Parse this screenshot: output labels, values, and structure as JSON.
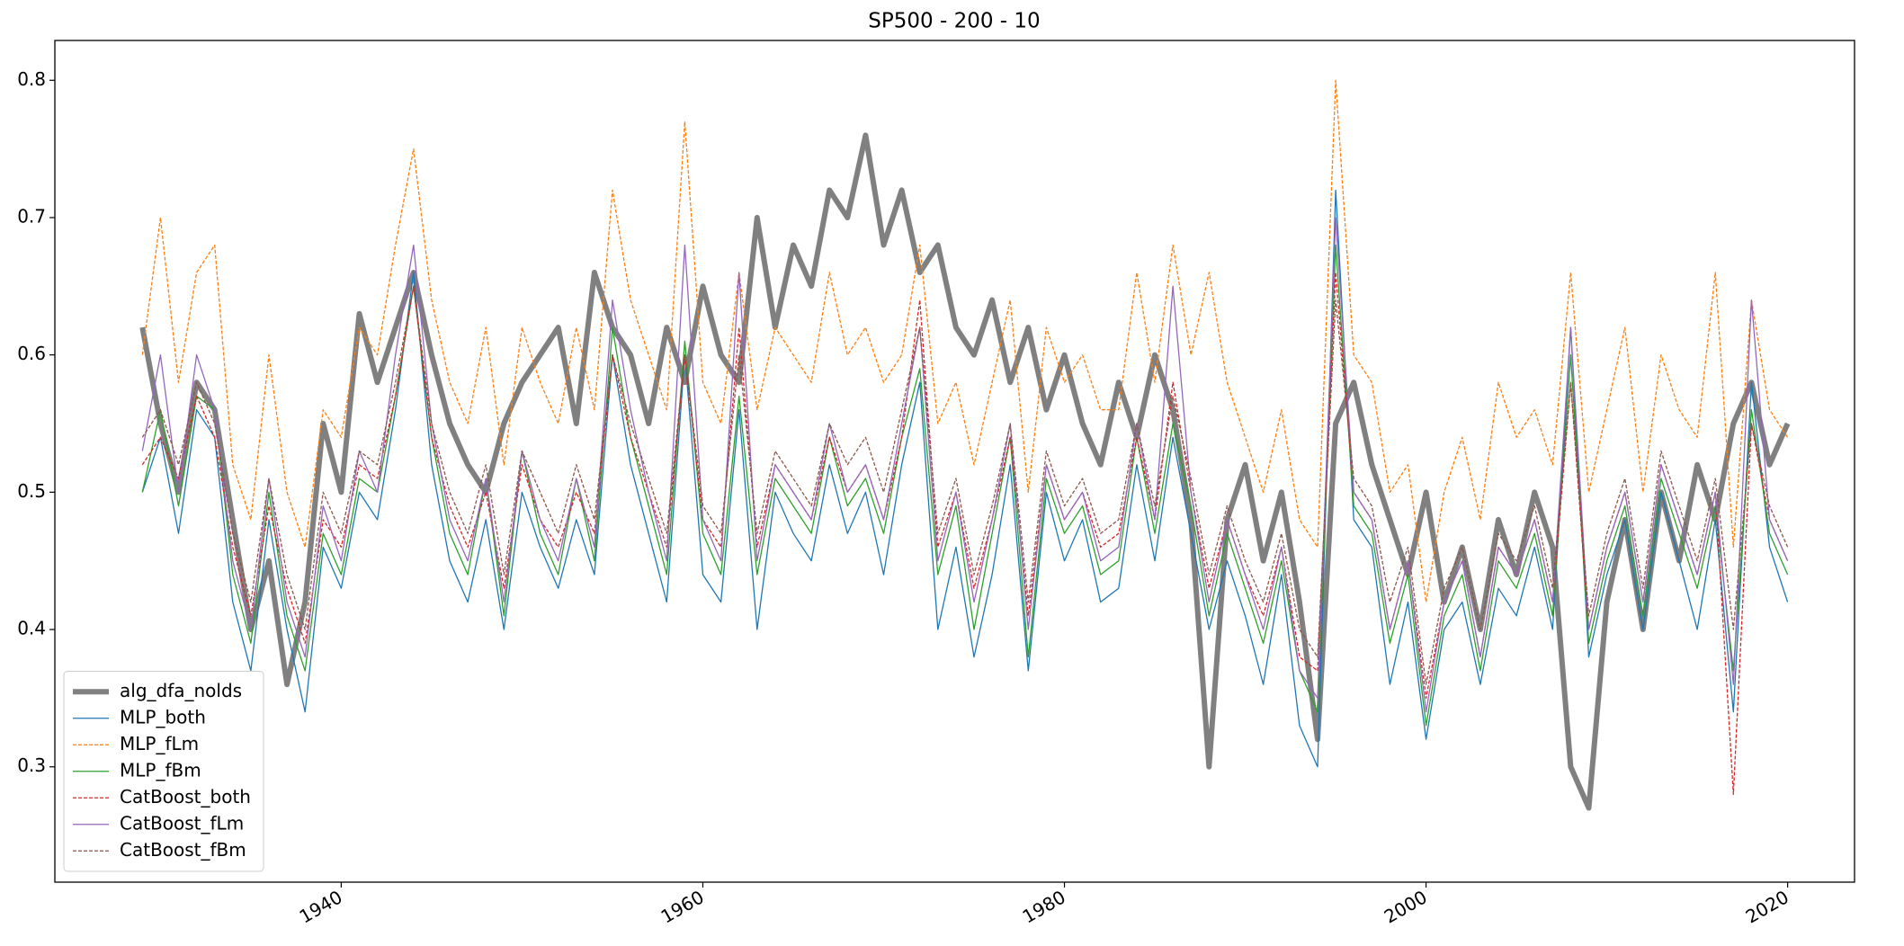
{
  "chart_data": {
    "type": "line",
    "title": "SP500 - 200 - 10",
    "x": [
      1929,
      1930,
      1931,
      1932,
      1933,
      1934,
      1935,
      1936,
      1937,
      1938,
      1939,
      1940,
      1941,
      1942,
      1943,
      1944,
      1945,
      1946,
      1947,
      1948,
      1949,
      1950,
      1951,
      1952,
      1953,
      1954,
      1955,
      1956,
      1957,
      1958,
      1959,
      1960,
      1961,
      1962,
      1963,
      1964,
      1965,
      1966,
      1967,
      1968,
      1969,
      1970,
      1971,
      1972,
      1973,
      1974,
      1975,
      1976,
      1977,
      1978,
      1979,
      1980,
      1981,
      1982,
      1983,
      1984,
      1985,
      1986,
      1987,
      1988,
      1989,
      1990,
      1991,
      1992,
      1993,
      1994,
      1995,
      1996,
      1997,
      1998,
      1999,
      2000,
      2001,
      2002,
      2003,
      2004,
      2005,
      2006,
      2007,
      2008,
      2009,
      2010,
      2011,
      2012,
      2013,
      2014,
      2015,
      2016,
      2017,
      2018,
      2019,
      2020
    ],
    "xlim": [
      1924.16,
      2023.7
    ],
    "xticks": [
      1940,
      1960,
      1980,
      2000,
      2020
    ],
    "ylim": [
      0.216,
      0.829
    ],
    "yticks": [
      0.3,
      0.4,
      0.5,
      0.6,
      0.7,
      0.8
    ],
    "legend": "lower left",
    "series": [
      {
        "name": "alg_dfa_nolds",
        "color": "#808080",
        "linewidth": 6,
        "linestyle": "solid",
        "values": [
          0.62,
          0.55,
          0.5,
          0.58,
          0.56,
          0.48,
          0.4,
          0.45,
          0.36,
          0.42,
          0.55,
          0.5,
          0.63,
          0.58,
          0.62,
          0.66,
          0.6,
          0.55,
          0.52,
          0.5,
          0.55,
          0.58,
          0.6,
          0.62,
          0.55,
          0.66,
          0.62,
          0.6,
          0.55,
          0.62,
          0.58,
          0.65,
          0.6,
          0.58,
          0.7,
          0.62,
          0.68,
          0.65,
          0.72,
          0.7,
          0.76,
          0.68,
          0.72,
          0.66,
          0.68,
          0.62,
          0.6,
          0.64,
          0.58,
          0.62,
          0.56,
          0.6,
          0.55,
          0.52,
          0.58,
          0.54,
          0.6,
          0.56,
          0.48,
          0.3,
          0.48,
          0.52,
          0.45,
          0.5,
          0.42,
          0.32,
          0.55,
          0.58,
          0.52,
          0.48,
          0.44,
          0.5,
          0.42,
          0.46,
          0.4,
          0.48,
          0.44,
          0.5,
          0.46,
          0.3,
          0.27,
          0.42,
          0.48,
          0.4,
          0.5,
          0.45,
          0.52,
          0.48,
          0.55,
          0.58,
          0.52,
          0.55
        ]
      },
      {
        "name": "MLP_both",
        "color": "#1f77b4",
        "linewidth": 1.3,
        "linestyle": "solid",
        "values": [
          0.5,
          0.54,
          0.47,
          0.56,
          0.54,
          0.42,
          0.37,
          0.48,
          0.4,
          0.34,
          0.46,
          0.43,
          0.5,
          0.48,
          0.56,
          0.66,
          0.52,
          0.45,
          0.42,
          0.48,
          0.4,
          0.5,
          0.46,
          0.43,
          0.48,
          0.44,
          0.6,
          0.52,
          0.47,
          0.42,
          0.6,
          0.44,
          0.42,
          0.56,
          0.4,
          0.5,
          0.47,
          0.45,
          0.52,
          0.47,
          0.5,
          0.44,
          0.52,
          0.58,
          0.4,
          0.46,
          0.38,
          0.44,
          0.52,
          0.37,
          0.5,
          0.45,
          0.48,
          0.42,
          0.43,
          0.52,
          0.45,
          0.54,
          0.47,
          0.4,
          0.45,
          0.41,
          0.36,
          0.44,
          0.33,
          0.3,
          0.72,
          0.48,
          0.46,
          0.36,
          0.42,
          0.32,
          0.4,
          0.42,
          0.36,
          0.43,
          0.41,
          0.46,
          0.4,
          0.62,
          0.38,
          0.44,
          0.48,
          0.4,
          0.5,
          0.45,
          0.4,
          0.48,
          0.34,
          0.58,
          0.46,
          0.42
        ]
      },
      {
        "name": "MLP_fLm",
        "color": "#ff7f0e",
        "linewidth": 1.3,
        "linestyle": "dashed",
        "values": [
          0.6,
          0.7,
          0.58,
          0.66,
          0.68,
          0.52,
          0.48,
          0.6,
          0.5,
          0.46,
          0.56,
          0.54,
          0.62,
          0.6,
          0.68,
          0.75,
          0.64,
          0.58,
          0.55,
          0.62,
          0.52,
          0.62,
          0.58,
          0.55,
          0.62,
          0.56,
          0.72,
          0.64,
          0.6,
          0.56,
          0.77,
          0.58,
          0.55,
          0.66,
          0.56,
          0.62,
          0.6,
          0.58,
          0.66,
          0.6,
          0.62,
          0.58,
          0.6,
          0.68,
          0.55,
          0.58,
          0.52,
          0.58,
          0.64,
          0.5,
          0.62,
          0.58,
          0.6,
          0.56,
          0.56,
          0.66,
          0.58,
          0.68,
          0.6,
          0.66,
          0.58,
          0.54,
          0.5,
          0.56,
          0.48,
          0.46,
          0.8,
          0.6,
          0.58,
          0.5,
          0.52,
          0.42,
          0.5,
          0.54,
          0.48,
          0.58,
          0.54,
          0.56,
          0.52,
          0.66,
          0.5,
          0.56,
          0.62,
          0.5,
          0.6,
          0.56,
          0.54,
          0.66,
          0.46,
          0.64,
          0.56,
          0.54
        ]
      },
      {
        "name": "MLP_fBm",
        "color": "#2ca02c",
        "linewidth": 1.3,
        "linestyle": "solid",
        "values": [
          0.5,
          0.56,
          0.49,
          0.57,
          0.56,
          0.44,
          0.39,
          0.5,
          0.41,
          0.37,
          0.47,
          0.44,
          0.51,
          0.5,
          0.57,
          0.65,
          0.54,
          0.47,
          0.44,
          0.51,
          0.41,
          0.53,
          0.47,
          0.44,
          0.51,
          0.45,
          0.62,
          0.54,
          0.49,
          0.44,
          0.61,
          0.47,
          0.44,
          0.57,
          0.44,
          0.51,
          0.49,
          0.47,
          0.54,
          0.49,
          0.51,
          0.47,
          0.54,
          0.59,
          0.44,
          0.49,
          0.4,
          0.47,
          0.54,
          0.38,
          0.51,
          0.47,
          0.49,
          0.44,
          0.45,
          0.54,
          0.47,
          0.55,
          0.49,
          0.41,
          0.47,
          0.43,
          0.39,
          0.45,
          0.37,
          0.34,
          0.68,
          0.49,
          0.47,
          0.39,
          0.44,
          0.33,
          0.41,
          0.44,
          0.37,
          0.45,
          0.43,
          0.47,
          0.41,
          0.6,
          0.39,
          0.45,
          0.49,
          0.41,
          0.51,
          0.47,
          0.43,
          0.49,
          0.37,
          0.56,
          0.47,
          0.44
        ]
      },
      {
        "name": "CatBoost_both",
        "color": "#d62728",
        "linewidth": 1.3,
        "linestyle": "dashed",
        "values": [
          0.52,
          0.54,
          0.51,
          0.57,
          0.54,
          0.46,
          0.41,
          0.49,
          0.43,
          0.39,
          0.48,
          0.46,
          0.52,
          0.51,
          0.57,
          0.65,
          0.54,
          0.49,
          0.46,
          0.5,
          0.43,
          0.52,
          0.48,
          0.46,
          0.5,
          0.47,
          0.6,
          0.54,
          0.5,
          0.46,
          0.6,
          0.48,
          0.46,
          0.62,
          0.46,
          0.52,
          0.5,
          0.48,
          0.54,
          0.5,
          0.52,
          0.48,
          0.54,
          0.64,
          0.46,
          0.5,
          0.43,
          0.48,
          0.54,
          0.41,
          0.52,
          0.48,
          0.5,
          0.46,
          0.47,
          0.54,
          0.48,
          0.58,
          0.5,
          0.43,
          0.48,
          0.44,
          0.41,
          0.46,
          0.38,
          0.37,
          0.66,
          0.5,
          0.48,
          0.4,
          0.45,
          0.35,
          0.42,
          0.45,
          0.38,
          0.46,
          0.44,
          0.48,
          0.42,
          0.58,
          0.4,
          0.46,
          0.5,
          0.42,
          0.52,
          0.48,
          0.44,
          0.5,
          0.28,
          0.55,
          0.48,
          0.45
        ]
      },
      {
        "name": "CatBoost_fLm",
        "color": "#9467bd",
        "linewidth": 1.3,
        "linestyle": "solid",
        "values": [
          0.53,
          0.6,
          0.5,
          0.6,
          0.56,
          0.45,
          0.4,
          0.51,
          0.42,
          0.38,
          0.49,
          0.45,
          0.53,
          0.5,
          0.6,
          0.68,
          0.55,
          0.48,
          0.45,
          0.51,
          0.42,
          0.53,
          0.48,
          0.45,
          0.51,
          0.46,
          0.64,
          0.56,
          0.5,
          0.45,
          0.68,
          0.48,
          0.45,
          0.66,
          0.45,
          0.52,
          0.5,
          0.48,
          0.55,
          0.5,
          0.52,
          0.48,
          0.55,
          0.62,
          0.45,
          0.5,
          0.42,
          0.48,
          0.55,
          0.4,
          0.52,
          0.48,
          0.5,
          0.45,
          0.46,
          0.55,
          0.48,
          0.65,
          0.5,
          0.42,
          0.48,
          0.44,
          0.4,
          0.46,
          0.37,
          0.35,
          0.7,
          0.5,
          0.48,
          0.4,
          0.45,
          0.34,
          0.42,
          0.45,
          0.38,
          0.46,
          0.44,
          0.48,
          0.42,
          0.62,
          0.4,
          0.46,
          0.5,
          0.42,
          0.52,
          0.48,
          0.44,
          0.5,
          0.36,
          0.64,
          0.48,
          0.45
        ]
      },
      {
        "name": "CatBoost_fBm",
        "color": "#8c564b",
        "linewidth": 1.3,
        "linestyle": "dashed",
        "values": [
          0.54,
          0.56,
          0.52,
          0.58,
          0.55,
          0.47,
          0.42,
          0.51,
          0.44,
          0.4,
          0.5,
          0.47,
          0.53,
          0.52,
          0.58,
          0.65,
          0.55,
          0.5,
          0.47,
          0.52,
          0.44,
          0.53,
          0.5,
          0.47,
          0.52,
          0.48,
          0.6,
          0.55,
          0.51,
          0.47,
          0.6,
          0.49,
          0.47,
          0.6,
          0.47,
          0.53,
          0.51,
          0.49,
          0.55,
          0.52,
          0.54,
          0.5,
          0.56,
          0.62,
          0.47,
          0.51,
          0.44,
          0.49,
          0.55,
          0.42,
          0.53,
          0.49,
          0.51,
          0.47,
          0.48,
          0.55,
          0.49,
          0.57,
          0.51,
          0.44,
          0.49,
          0.45,
          0.42,
          0.47,
          0.4,
          0.38,
          0.64,
          0.51,
          0.49,
          0.42,
          0.46,
          0.36,
          0.43,
          0.46,
          0.4,
          0.47,
          0.45,
          0.49,
          0.43,
          0.58,
          0.41,
          0.47,
          0.51,
          0.43,
          0.53,
          0.49,
          0.45,
          0.51,
          0.4,
          0.55,
          0.49,
          0.46
        ]
      }
    ]
  }
}
